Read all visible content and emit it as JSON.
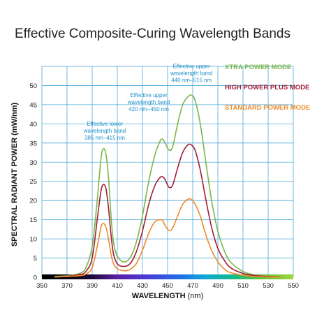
{
  "chart_data": {
    "type": "line",
    "title": "Effective Composite-Curing Wavelength Bands",
    "xlabel": "WAVELENGTH",
    "xlabel_unit": "(nm)",
    "ylabel": "SPECTRAL RADIANT POWER (mW/nm)",
    "xlim": [
      350,
      550
    ],
    "ylim": [
      0,
      55
    ],
    "x_ticks": [
      350,
      370,
      390,
      410,
      430,
      450,
      470,
      490,
      510,
      530,
      550
    ],
    "y_ticks": [
      0,
      5,
      10,
      15,
      20,
      25,
      30,
      35,
      40,
      45,
      50
    ],
    "grid": true,
    "legend_position": "top-right",
    "series": [
      {
        "name": "XTRA POWER MODE",
        "color": "#7ab648",
        "points": [
          [
            360,
            0.2
          ],
          [
            370,
            0.4
          ],
          [
            380,
            1
          ],
          [
            385,
            2.5
          ],
          [
            390,
            8
          ],
          [
            394,
            20
          ],
          [
            397,
            31
          ],
          [
            399,
            33.5
          ],
          [
            401,
            32
          ],
          [
            403,
            26
          ],
          [
            405,
            16
          ],
          [
            407,
            9
          ],
          [
            410,
            5.5
          ],
          [
            415,
            4
          ],
          [
            420,
            5
          ],
          [
            425,
            9
          ],
          [
            430,
            16
          ],
          [
            435,
            25
          ],
          [
            440,
            32
          ],
          [
            444,
            35.5
          ],
          [
            446,
            36
          ],
          [
            448,
            35
          ],
          [
            451,
            33.2
          ],
          [
            454,
            34
          ],
          [
            458,
            40
          ],
          [
            462,
            45
          ],
          [
            466,
            47
          ],
          [
            469,
            47.5
          ],
          [
            472,
            46
          ],
          [
            476,
            40
          ],
          [
            480,
            31
          ],
          [
            485,
            20
          ],
          [
            490,
            12
          ],
          [
            495,
            7
          ],
          [
            500,
            4
          ],
          [
            510,
            1.5
          ],
          [
            520,
            0.6
          ],
          [
            530,
            0.3
          ],
          [
            540,
            0.1
          ]
        ]
      },
      {
        "name": "HIGH POWER PLUS MODE",
        "color": "#a31d36",
        "points": [
          [
            360,
            0.1
          ],
          [
            370,
            0.3
          ],
          [
            380,
            0.7
          ],
          [
            385,
            1.5
          ],
          [
            390,
            5
          ],
          [
            394,
            15
          ],
          [
            397,
            22.5
          ],
          [
            399,
            24.2
          ],
          [
            401,
            23
          ],
          [
            403,
            18
          ],
          [
            405,
            11
          ],
          [
            407,
            6
          ],
          [
            410,
            3.5
          ],
          [
            415,
            2.8
          ],
          [
            420,
            3.5
          ],
          [
            425,
            6.5
          ],
          [
            430,
            12
          ],
          [
            435,
            19
          ],
          [
            440,
            24
          ],
          [
            444,
            26
          ],
          [
            446,
            26.2
          ],
          [
            448,
            25.5
          ],
          [
            451,
            23.5
          ],
          [
            454,
            24
          ],
          [
            458,
            28.5
          ],
          [
            462,
            32.5
          ],
          [
            466,
            34.5
          ],
          [
            469,
            34.5
          ],
          [
            472,
            33
          ],
          [
            476,
            28
          ],
          [
            480,
            21
          ],
          [
            485,
            13
          ],
          [
            490,
            7.5
          ],
          [
            495,
            4.5
          ],
          [
            500,
            2.5
          ],
          [
            510,
            1
          ],
          [
            520,
            0.4
          ],
          [
            530,
            0.2
          ],
          [
            540,
            0.1
          ]
        ]
      },
      {
        "name": "STANDARD POWER MODE",
        "color": "#ee8a2c",
        "points": [
          [
            360,
            0.1
          ],
          [
            370,
            0.2
          ],
          [
            380,
            0.4
          ],
          [
            385,
            0.8
          ],
          [
            390,
            2.5
          ],
          [
            394,
            8
          ],
          [
            397,
            13
          ],
          [
            399,
            14
          ],
          [
            401,
            13
          ],
          [
            403,
            10
          ],
          [
            405,
            6
          ],
          [
            407,
            3.5
          ],
          [
            410,
            2.2
          ],
          [
            415,
            1.7
          ],
          [
            420,
            2
          ],
          [
            425,
            3.5
          ],
          [
            430,
            7
          ],
          [
            435,
            11.5
          ],
          [
            440,
            14.5
          ],
          [
            444,
            15
          ],
          [
            446,
            14.8
          ],
          [
            448,
            13.5
          ],
          [
            451,
            12.2
          ],
          [
            454,
            12.8
          ],
          [
            458,
            16
          ],
          [
            462,
            19
          ],
          [
            466,
            20.3
          ],
          [
            469,
            20.3
          ],
          [
            472,
            19
          ],
          [
            476,
            16
          ],
          [
            480,
            11.5
          ],
          [
            485,
            7
          ],
          [
            490,
            4
          ],
          [
            495,
            2.2
          ],
          [
            500,
            1.2
          ],
          [
            510,
            0.5
          ],
          [
            520,
            0.2
          ],
          [
            530,
            0.1
          ],
          [
            540,
            0.05
          ]
        ]
      }
    ],
    "annotations": [
      {
        "lines": [
          "Effective lower",
          "wavelength band",
          "385 nm–415 nm"
        ],
        "x": 400,
        "y": 39.5
      },
      {
        "lines": [
          "Effective upper",
          "wavelength band",
          "420 nm–450 nm"
        ],
        "x": 435,
        "y": 47
      },
      {
        "lines": [
          "Effective upper",
          "wavelength band",
          "440 nm–515 nm"
        ],
        "x": 469,
        "y": 54.5
      }
    ]
  }
}
